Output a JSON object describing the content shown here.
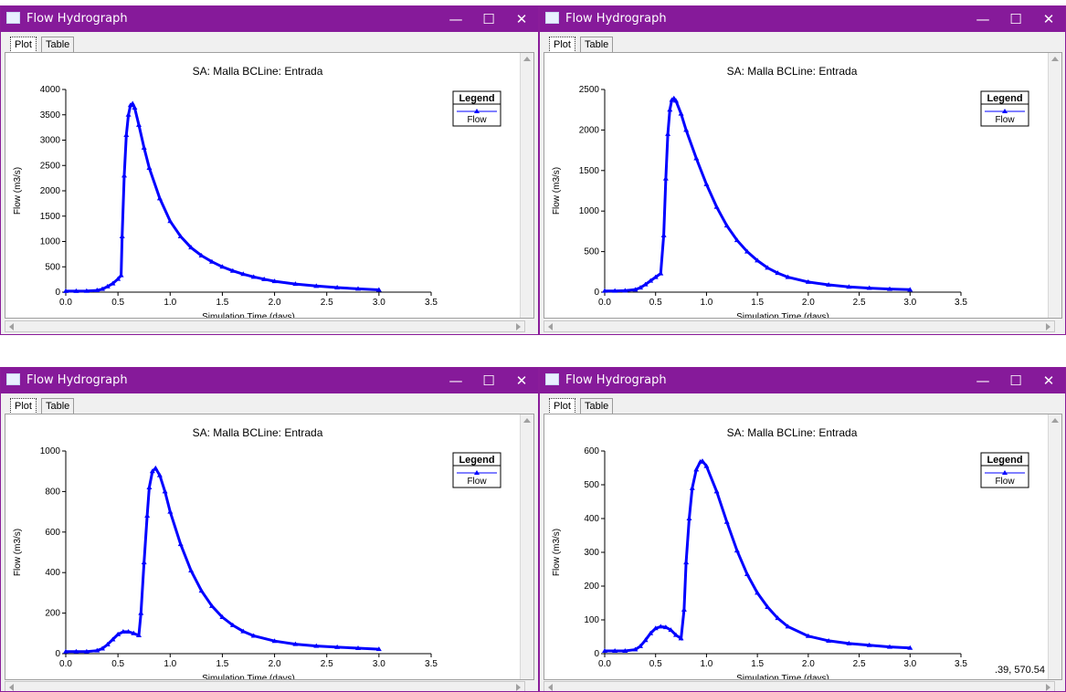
{
  "windows": [
    {
      "title": "Flow Hydrograph",
      "tabs": [
        "Plot",
        "Table"
      ],
      "active_tab": "Plot",
      "controls": {
        "minimize": "—",
        "maximize": "☐",
        "close": "✕"
      },
      "readout": "",
      "chart_data": {
        "type": "line",
        "title": "SA: Malla BCLine: Entrada",
        "xlabel": "Simulation Time (days)",
        "ylabel": "Flow (m3/s)",
        "xlim": [
          0,
          3.5
        ],
        "ylim": [
          0,
          4000
        ],
        "xticks": [
          "0.0",
          "0.5",
          "1.0",
          "1.5",
          "2.0",
          "2.5",
          "3.0",
          "3.5"
        ],
        "yticks": [
          "0",
          "500",
          "1000",
          "1500",
          "2000",
          "2500",
          "3000",
          "3500",
          "4000"
        ],
        "legend": {
          "title": "Legend",
          "position": "top-right",
          "entries": [
            "Flow"
          ]
        },
        "series": [
          {
            "name": "Flow",
            "color": "#0000ff",
            "x": [
              0,
              0.1,
              0.2,
              0.3,
              0.35,
              0.4,
              0.45,
              0.5,
              0.53,
              0.54,
              0.56,
              0.58,
              0.6,
              0.62,
              0.64,
              0.66,
              0.7,
              0.75,
              0.8,
              0.9,
              1.0,
              1.1,
              1.2,
              1.3,
              1.4,
              1.5,
              1.6,
              1.7,
              1.8,
              1.9,
              2.0,
              2.2,
              2.4,
              2.6,
              2.8,
              3.0
            ],
            "y": [
              20,
              20,
              22,
              35,
              60,
              110,
              170,
              260,
              330,
              1100,
              2300,
              3100,
              3500,
              3690,
              3720,
              3640,
              3300,
              2850,
              2450,
              1850,
              1400,
              1100,
              880,
              720,
              600,
              500,
              420,
              355,
              300,
              255,
              215,
              160,
              120,
              90,
              65,
              45
            ]
          }
        ]
      }
    },
    {
      "title": "Flow Hydrograph",
      "tabs": [
        "Plot",
        "Table"
      ],
      "active_tab": "Plot",
      "controls": {
        "minimize": "—",
        "maximize": "☐",
        "close": "✕"
      },
      "readout": "",
      "chart_data": {
        "type": "line",
        "title": "SA: Malla BCLine: Entrada",
        "xlabel": "Simulation Time (days)",
        "ylabel": "Flow (m3/s)",
        "xlim": [
          0,
          3.5
        ],
        "ylim": [
          0,
          2500
        ],
        "xticks": [
          "0.0",
          "0.5",
          "1.0",
          "1.5",
          "2.0",
          "2.5",
          "3.0",
          "3.5"
        ],
        "yticks": [
          "0",
          "500",
          "1000",
          "1500",
          "2000",
          "2500"
        ],
        "legend": {
          "title": "Legend",
          "position": "top-right",
          "entries": [
            "Flow"
          ]
        },
        "series": [
          {
            "name": "Flow",
            "color": "#0000ff",
            "x": [
              0,
              0.1,
              0.2,
              0.3,
              0.35,
              0.4,
              0.45,
              0.5,
              0.55,
              0.58,
              0.6,
              0.62,
              0.64,
              0.66,
              0.68,
              0.7,
              0.75,
              0.8,
              0.9,
              1.0,
              1.1,
              1.2,
              1.3,
              1.4,
              1.5,
              1.6,
              1.7,
              1.8,
              2.0,
              2.2,
              2.4,
              2.6,
              2.8,
              3.0
            ],
            "y": [
              15,
              15,
              18,
              30,
              55,
              95,
              140,
              185,
              230,
              700,
              1400,
              1950,
              2250,
              2370,
              2390,
              2360,
              2200,
              2000,
              1650,
              1330,
              1050,
              820,
              640,
              500,
              390,
              300,
              235,
              185,
              125,
              90,
              65,
              50,
              38,
              30
            ]
          }
        ]
      }
    },
    {
      "title": "Flow Hydrograph",
      "tabs": [
        "Plot",
        "Table"
      ],
      "active_tab": "Plot",
      "controls": {
        "minimize": "—",
        "maximize": "☐",
        "close": "✕"
      },
      "readout": "",
      "chart_data": {
        "type": "line",
        "title": "SA: Malla BCLine: Entrada",
        "xlabel": "Simulation Time (days)",
        "ylabel": "Flow (m3/s)",
        "xlim": [
          0,
          3.5
        ],
        "ylim": [
          0,
          1000
        ],
        "xticks": [
          "0.0",
          "0.5",
          "1.0",
          "1.5",
          "2.0",
          "2.5",
          "3.0",
          "3.5"
        ],
        "yticks": [
          "0",
          "200",
          "400",
          "600",
          "800",
          "1000"
        ],
        "legend": {
          "title": "Legend",
          "position": "top-right",
          "entries": [
            "Flow"
          ]
        },
        "series": [
          {
            "name": "Flow",
            "color": "#0000ff",
            "x": [
              0,
              0.1,
              0.2,
              0.3,
              0.35,
              0.4,
              0.45,
              0.5,
              0.55,
              0.6,
              0.65,
              0.7,
              0.72,
              0.75,
              0.78,
              0.8,
              0.83,
              0.86,
              0.9,
              0.95,
              1.0,
              1.1,
              1.2,
              1.3,
              1.4,
              1.5,
              1.6,
              1.7,
              1.8,
              2.0,
              2.2,
              2.4,
              2.6,
              2.8,
              3.0
            ],
            "y": [
              10,
              10,
              10,
              15,
              25,
              45,
              70,
              95,
              108,
              108,
              100,
              90,
              200,
              450,
              680,
              820,
              900,
              915,
              880,
              800,
              700,
              540,
              410,
              310,
              235,
              180,
              140,
              110,
              88,
              62,
              47,
              38,
              32,
              27,
              22
            ]
          }
        ]
      }
    },
    {
      "title": "Flow Hydrograph",
      "tabs": [
        "Plot",
        "Table"
      ],
      "active_tab": "Plot",
      "controls": {
        "minimize": "—",
        "maximize": "☐",
        "close": "✕"
      },
      "readout": ".39, 570.54",
      "chart_data": {
        "type": "line",
        "title": "SA: Malla BCLine: Entrada",
        "xlabel": "Simulation Time (days)",
        "ylabel": "Flow (m3/s)",
        "xlim": [
          0,
          3.5
        ],
        "ylim": [
          0,
          600
        ],
        "xticks": [
          "0.0",
          "0.5",
          "1.0",
          "1.5",
          "2.0",
          "2.5",
          "3.0",
          "3.5"
        ],
        "yticks": [
          "0",
          "100",
          "200",
          "300",
          "400",
          "500",
          "600"
        ],
        "legend": {
          "title": "Legend",
          "position": "top-right",
          "entries": [
            "Flow"
          ]
        },
        "series": [
          {
            "name": "Flow",
            "color": "#0000ff",
            "x": [
              0,
              0.1,
              0.2,
              0.3,
              0.35,
              0.4,
              0.45,
              0.5,
              0.55,
              0.6,
              0.65,
              0.7,
              0.75,
              0.78,
              0.8,
              0.83,
              0.86,
              0.9,
              0.94,
              0.96,
              1.0,
              1.1,
              1.2,
              1.3,
              1.4,
              1.5,
              1.6,
              1.7,
              1.8,
              2.0,
              2.2,
              2.4,
              2.6,
              2.8,
              3.0
            ],
            "y": [
              8,
              8,
              8,
              12,
              22,
              40,
              60,
              75,
              80,
              78,
              70,
              55,
              45,
              130,
              270,
              400,
              490,
              545,
              568,
              570,
              555,
              480,
              390,
              305,
              235,
              180,
              138,
              105,
              80,
              52,
              38,
              30,
              25,
              20,
              17
            ]
          }
        ]
      }
    }
  ]
}
